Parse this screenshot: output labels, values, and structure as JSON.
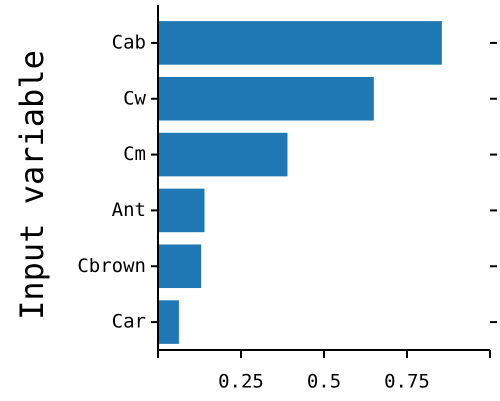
{
  "chart_data": {
    "type": "barh",
    "ylabel": "Input variable",
    "categories": [
      "Cab",
      "Cw",
      "Cm",
      "Ant",
      "Cbrown",
      "Car"
    ],
    "values": [
      0.855,
      0.65,
      0.39,
      0.14,
      0.13,
      0.063
    ],
    "color": "#1f77b4",
    "xlim": [
      0,
      1
    ],
    "xticks": [
      0.25,
      0.5,
      0.75
    ],
    "grid": false
  }
}
